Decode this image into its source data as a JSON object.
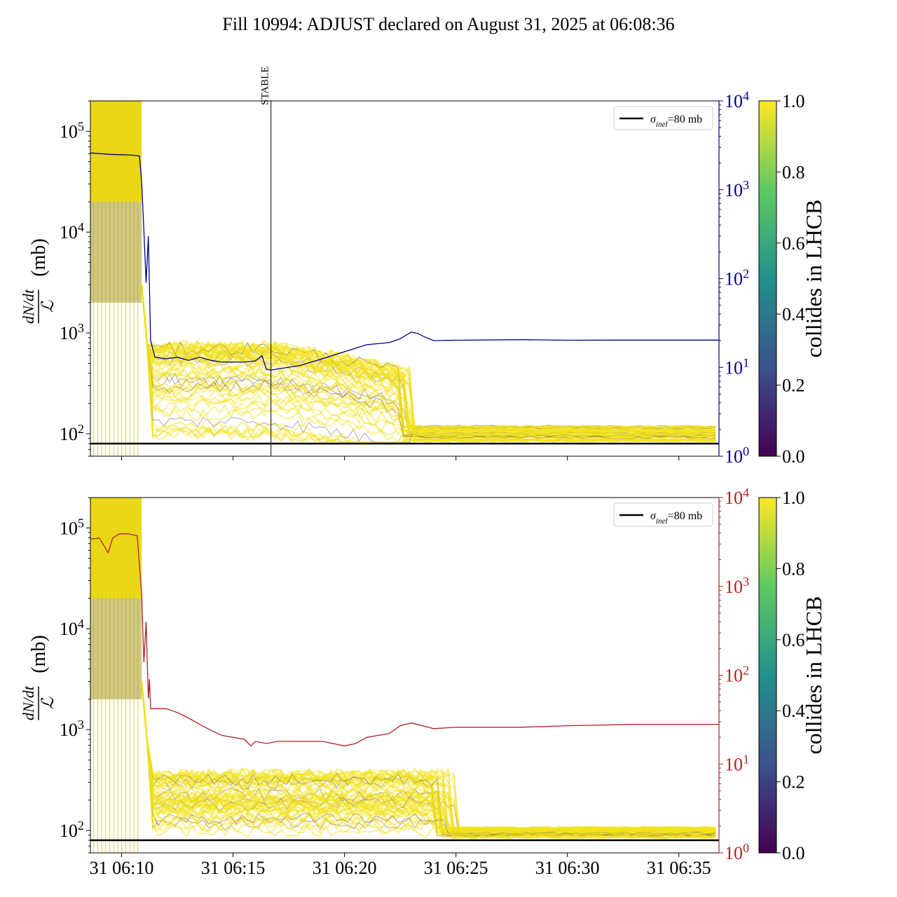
{
  "title": "Fill 10994: ADJUST declared on August 31, 2025 at 06:08:36",
  "colors": {
    "top_secondary": "#00008b",
    "bottom_secondary": "#b22222",
    "sigma_line": "#000000",
    "viridis": [
      "#440154",
      "#3b528b",
      "#21918c",
      "#5ec962",
      "#fde725"
    ]
  },
  "chart_data": [
    {
      "type": "line",
      "panel": "top",
      "ylabel_numerator": "dN/dt",
      "ylabel_denominator": "ℒ",
      "ylabel_unit": "(mb)",
      "yscale": "log",
      "ylim": [
        60,
        200000
      ],
      "y_ticks": [
        {
          "value": 100,
          "label": "10",
          "exp": "2"
        },
        {
          "value": 1000,
          "label": "10",
          "exp": "3"
        },
        {
          "value": 10000,
          "label": "10",
          "exp": "4"
        },
        {
          "value": 100000,
          "label": "10",
          "exp": "5"
        }
      ],
      "xlim_minutes": [
        8.6,
        36.8
      ],
      "x_tick_minutes": [
        10,
        15,
        20,
        25,
        30,
        35
      ],
      "show_x_tick_labels": false,
      "vline": {
        "minute": 16.7,
        "label": "STABLE"
      },
      "legend": {
        "label_main": "σ",
        "label_sub": "inel",
        "label_rest": "=80 mb",
        "position": "upper right"
      },
      "sigma_inel": 80,
      "secondary_axis": {
        "yscale": "log",
        "ylim": [
          1,
          10000
        ],
        "ticks": [
          {
            "value": 1,
            "label": "10",
            "exp": "0"
          },
          {
            "value": 10,
            "label": "10",
            "exp": "1"
          },
          {
            "value": 100,
            "label": "10",
            "exp": "2"
          },
          {
            "value": 1000,
            "label": "10",
            "exp": "3"
          },
          {
            "value": 10000,
            "label": "10",
            "exp": "4"
          }
        ],
        "series": {
          "x": [
            8.6,
            9.0,
            9.5,
            10.0,
            10.5,
            10.8,
            10.9,
            11.0,
            11.1,
            11.2,
            11.3,
            11.5,
            12.0,
            12.5,
            13.0,
            13.5,
            14.0,
            14.5,
            15.0,
            15.5,
            16.0,
            16.3,
            16.5,
            16.7,
            17.0,
            18.0,
            19.0,
            20.0,
            21.0,
            22.0,
            22.5,
            23.0,
            23.3,
            23.6,
            24.0,
            25.0,
            28.0,
            30.0,
            33.0,
            36.8
          ],
          "y": [
            2600,
            2550,
            2500,
            2480,
            2450,
            2400,
            1200,
            350,
            90,
            300,
            20,
            13,
            12.5,
            13,
            12,
            13,
            12,
            11.5,
            11.5,
            11.5,
            11.8,
            13.5,
            9.5,
            9.3,
            9.6,
            10.5,
            12.5,
            15,
            18,
            19,
            21,
            25,
            24,
            22,
            20,
            20.2,
            20.5,
            20.2,
            20.3,
            20.3
          ]
        }
      },
      "colorbar": {
        "label": "collides in LHCB",
        "range": [
          0,
          1
        ],
        "ticks": [
          "0.0",
          "0.2",
          "0.4",
          "0.6",
          "0.8",
          "1.0"
        ]
      }
    },
    {
      "type": "line",
      "panel": "bottom",
      "ylabel_numerator": "dN/dt",
      "ylabel_denominator": "ℒ",
      "ylabel_unit": "(mb)",
      "yscale": "log",
      "ylim": [
        60,
        200000
      ],
      "y_ticks": [
        {
          "value": 100,
          "label": "10",
          "exp": "2"
        },
        {
          "value": 1000,
          "label": "10",
          "exp": "3"
        },
        {
          "value": 10000,
          "label": "10",
          "exp": "4"
        },
        {
          "value": 100000,
          "label": "10",
          "exp": "5"
        }
      ],
      "xlim_minutes": [
        8.6,
        36.8
      ],
      "x_tick_minutes": [
        10,
        15,
        20,
        25,
        30,
        35
      ],
      "x_tick_labels": [
        "31 06:10",
        "31 06:15",
        "31 06:20",
        "31 06:25",
        "31 06:30",
        "31 06:35"
      ],
      "legend": {
        "label_main": "σ",
        "label_sub": "inel",
        "label_rest": "=80 mb",
        "position": "upper right"
      },
      "sigma_inel": 80,
      "secondary_axis": {
        "yscale": "log",
        "ylim": [
          1,
          10000
        ],
        "ticks": [
          {
            "value": 1,
            "label": "10",
            "exp": "0"
          },
          {
            "value": 10,
            "label": "10",
            "exp": "1"
          },
          {
            "value": 100,
            "label": "10",
            "exp": "2"
          },
          {
            "value": 1000,
            "label": "10",
            "exp": "3"
          },
          {
            "value": 10000,
            "label": "10",
            "exp": "4"
          }
        ],
        "series": {
          "x": [
            8.6,
            9.0,
            9.4,
            9.6,
            9.9,
            10.3,
            10.7,
            10.9,
            11.0,
            11.1,
            11.2,
            11.25,
            11.3,
            11.5,
            12.0,
            12.5,
            13.0,
            13.5,
            14.0,
            14.5,
            15.0,
            15.5,
            15.8,
            16.0,
            16.5,
            17.0,
            18.0,
            19.0,
            20.0,
            20.5,
            21.0,
            22.0,
            22.5,
            23.0,
            23.5,
            24.0,
            25.0,
            28.0,
            30.0,
            33.0,
            36.8
          ],
          "y": [
            3400,
            3500,
            2400,
            3500,
            3900,
            3900,
            3700,
            800,
            140,
            400,
            55,
            90,
            42,
            42,
            42,
            38,
            33,
            28,
            24,
            21,
            20,
            19,
            16,
            18,
            17,
            18,
            18,
            18,
            16,
            17,
            20,
            22,
            27,
            29,
            27,
            25,
            26,
            26,
            27,
            28,
            28
          ]
        }
      },
      "colorbar": {
        "label": "collides in LHCB",
        "range": [
          0,
          1
        ],
        "ticks": [
          "0.0",
          "0.2",
          "0.4",
          "0.6",
          "0.8",
          "1.0"
        ]
      }
    }
  ]
}
